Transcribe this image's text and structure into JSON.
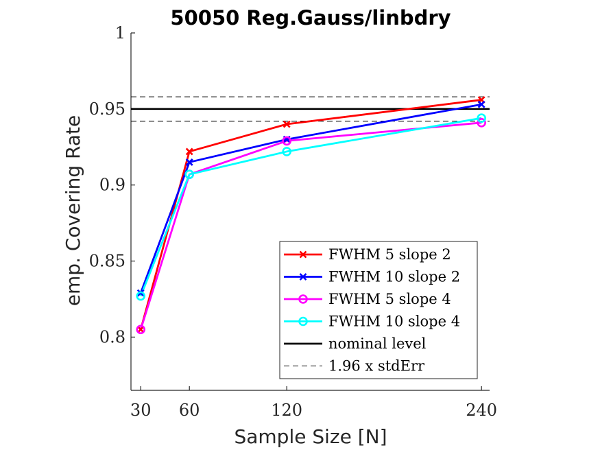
{
  "chart_data": {
    "type": "line",
    "title": "50050 Reg.Gauss/linbdry",
    "xlabel": "Sample Size [N]",
    "ylabel": "emp. Covering Rate",
    "x": [
      30,
      60,
      120,
      240
    ],
    "xlim": [
      24,
      245
    ],
    "ylim": [
      0.765,
      1.0
    ],
    "x_ticks": [
      30,
      60,
      120,
      240
    ],
    "x_tick_labels": [
      "30",
      "60",
      "120",
      "240"
    ],
    "y_ticks": [
      0.8,
      0.85,
      0.9,
      0.95,
      1.0
    ],
    "y_tick_labels": [
      "0.8",
      "0.85",
      "0.9",
      "0.95",
      "1"
    ],
    "series": [
      {
        "name": "FWHM 5 slope 2",
        "values": [
          0.805,
          0.922,
          0.94,
          0.956
        ],
        "color": "#ff0000",
        "marker": "x"
      },
      {
        "name": "FWHM 10 slope 2",
        "values": [
          0.829,
          0.915,
          0.93,
          0.953
        ],
        "color": "#0000ff",
        "marker": "x"
      },
      {
        "name": "FWHM 5 slope 4",
        "values": [
          0.805,
          0.907,
          0.929,
          0.941
        ],
        "color": "#ff00ff",
        "marker": "o"
      },
      {
        "name": "FWHM 10 slope 4",
        "values": [
          0.827,
          0.907,
          0.922,
          0.944
        ],
        "color": "#00ffff",
        "marker": "o"
      }
    ],
    "reference_lines": [
      {
        "name": "nominal level",
        "y": 0.95,
        "color": "#000000",
        "style": "solid"
      },
      {
        "name": "1.96 x stdErr",
        "y": 0.958,
        "color": "#000000",
        "style": "dashed"
      },
      {
        "name": "1.96 x stdErr",
        "y": 0.942,
        "color": "#000000",
        "style": "dashed"
      }
    ],
    "legend": {
      "placement": "bottom-right",
      "entries": [
        {
          "label": "FWHM 5 slope 2",
          "color": "#ff0000",
          "marker": "x",
          "style": "solid"
        },
        {
          "label": "FWHM 10 slope 2",
          "color": "#0000ff",
          "marker": "x",
          "style": "solid"
        },
        {
          "label": "FWHM 5 slope 4",
          "color": "#ff00ff",
          "marker": "o",
          "style": "solid"
        },
        {
          "label": "FWHM 10 slope 4",
          "color": "#00ffff",
          "marker": "o",
          "style": "solid"
        },
        {
          "label": "nominal level",
          "color": "#000000",
          "marker": "none",
          "style": "solid"
        },
        {
          "label": "1.96 x stdErr",
          "color": "#000000",
          "marker": "none",
          "style": "dashed"
        }
      ]
    },
    "grid": false
  }
}
